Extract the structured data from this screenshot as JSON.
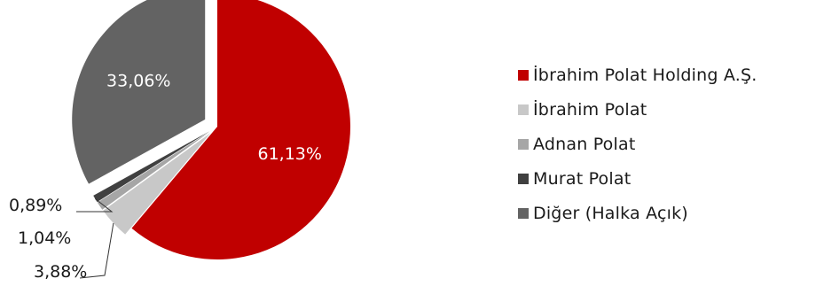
{
  "chart_data": {
    "type": "pie",
    "slices": [
      {
        "name": "İbrahim Polat Holding A.Ş.",
        "value": 61.13,
        "label": "61,13%",
        "color": "#c00000"
      },
      {
        "name": "İbrahim Polat",
        "value": 3.88,
        "label": "3,88%",
        "color": "#c8c8c8"
      },
      {
        "name": "Adnan Polat",
        "value": 1.04,
        "label": "1,04%",
        "color": "#a6a6a6"
      },
      {
        "name": "Murat Polat",
        "value": 0.89,
        "label": "0,89%",
        "color": "#404040"
      },
      {
        "name": "Diğer (Halka Açık)",
        "value": 33.06,
        "label": "33,06%",
        "color": "#636363"
      }
    ],
    "legend_position": "right"
  }
}
